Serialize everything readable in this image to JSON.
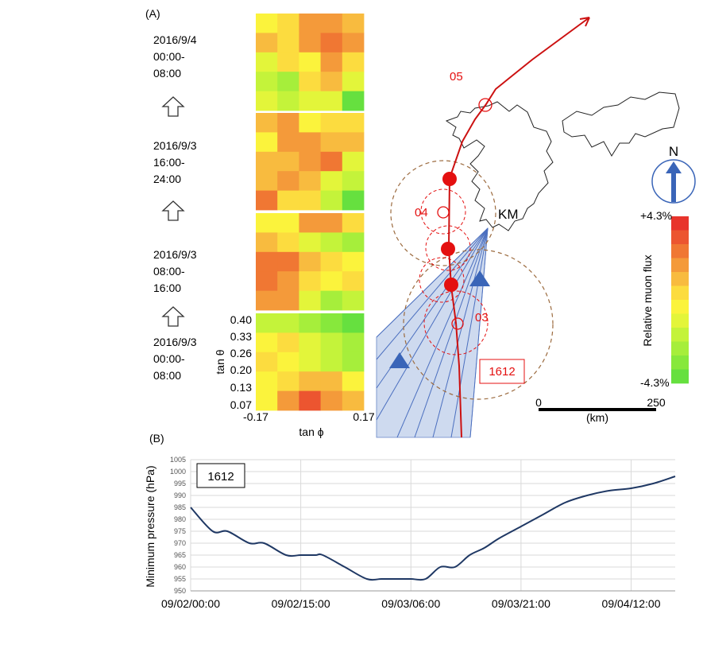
{
  "panel_a": {
    "label": "(A)",
    "time_windows": [
      {
        "line1": "2016/9/4",
        "line2": "00:00-",
        "line3": "08:00"
      },
      {
        "line1": "2016/9/3",
        "line2": "16:00-",
        "line3": "24:00"
      },
      {
        "line1": "2016/9/3",
        "line2": "08:00-",
        "line3": "16:00"
      },
      {
        "line1": "2016/9/3",
        "line2": "00:00-",
        "line3": "08:00"
      }
    ],
    "heatmap_y_ticks": [
      "0.40",
      "0.33",
      "0.26",
      "0.20",
      "0.13",
      "0.07"
    ],
    "heatmap_x_ticks": [
      "-0.17",
      "0.17"
    ],
    "heatmap_ylabel": "tan θ",
    "heatmap_xlabel": "tan ϕ",
    "map": {
      "track_labels": [
        "05",
        "04",
        "03"
      ],
      "typhoon_box": "1612",
      "station_label": "KM",
      "compass": "N",
      "scale_min": "0",
      "scale_max": "250",
      "scale_unit": "(km)",
      "track_color": "#cc1111",
      "marker_color": "#e41010",
      "fan_color": "#c9d7ee",
      "volcano_color": "#3a65b8"
    },
    "colorbar": {
      "top": "+4.3%",
      "bottom": "-4.3%",
      "title": "Relative muon flux",
      "colors": [
        "#e8342c",
        "#ec5530",
        "#f07733",
        "#f49a3a",
        "#f8bb3f",
        "#fcdc3f",
        "#fbf33c",
        "#e3f53a",
        "#c4f33a",
        "#a6ee3b",
        "#87e83c",
        "#66e03f"
      ]
    }
  },
  "panel_b": {
    "label": "(B)",
    "box_label": "1612",
    "line_color": "#1f3864"
  },
  "chart_data": {
    "type": "line",
    "title": "",
    "xlabel": "",
    "ylabel": "Minimum  pressure (hPa)",
    "x_ticks": [
      "09/02/00:00",
      "09/02/15:00",
      "09/03/06:00",
      "09/03/21:00",
      "09/04/12:00"
    ],
    "x_tick_hours": [
      0,
      15,
      30,
      45,
      60
    ],
    "xlim": [
      0,
      66
    ],
    "ylim": [
      950,
      1005
    ],
    "y_ticks": [
      950,
      955,
      960,
      965,
      970,
      975,
      980,
      985,
      990,
      995,
      1000,
      1005
    ],
    "grid": true,
    "series": [
      {
        "name": "1612",
        "x": [
          0,
          3,
          5,
          8,
          10,
          13,
          15,
          17,
          18,
          21,
          24,
          26,
          28,
          30,
          32,
          34,
          36,
          38,
          40,
          42,
          45,
          48,
          51,
          54,
          57,
          60,
          63,
          66
        ],
        "y": [
          985,
          975,
          975,
          970,
          970,
          965,
          965,
          965,
          965,
          960,
          955,
          955,
          955,
          955,
          955,
          960,
          960,
          965,
          968,
          972,
          977,
          982,
          987,
          990,
          992,
          993,
          995,
          998
        ]
      }
    ]
  }
}
